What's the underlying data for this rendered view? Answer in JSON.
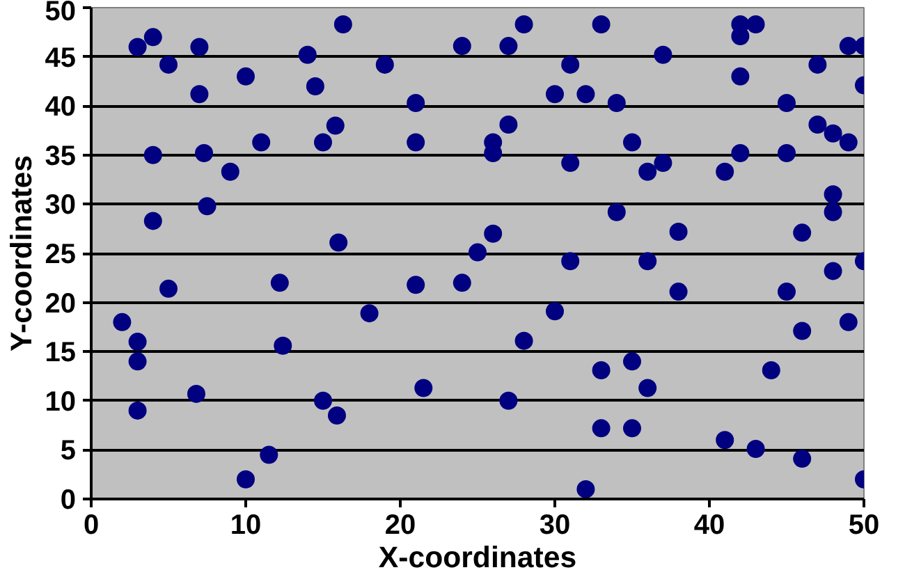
{
  "chart_data": {
    "type": "scatter",
    "xlabel": "X-coordinates",
    "ylabel": "Y-coordinates",
    "xlim": [
      0,
      50
    ],
    "ylim": [
      0,
      50
    ],
    "xticks": [
      0,
      10,
      20,
      30,
      40,
      50
    ],
    "yticks": [
      0,
      5,
      10,
      15,
      20,
      25,
      30,
      35,
      40,
      45,
      50
    ],
    "grid": "y",
    "marker": "circle",
    "series": [
      {
        "color": "#000080",
        "x": [
          2,
          3,
          3,
          3,
          3,
          4,
          4,
          4,
          5,
          5,
          7,
          7,
          7.3,
          7.5,
          6.8,
          9,
          10,
          10,
          11,
          11.5,
          12.2,
          12.4,
          14,
          14.5,
          15,
          15,
          15.8,
          16,
          15.9,
          16.3,
          18,
          19,
          21,
          21,
          21,
          21.5,
          24,
          24,
          25,
          26,
          26,
          26,
          27,
          27,
          27,
          28,
          28,
          30,
          30,
          31,
          31,
          31,
          32,
          32,
          33,
          33,
          33,
          34,
          34,
          35,
          35,
          35,
          36,
          36,
          36,
          37,
          37,
          38,
          38,
          41,
          41,
          42,
          42,
          42,
          42,
          43,
          43,
          44,
          45,
          45,
          45,
          46,
          46,
          46,
          47,
          47,
          48,
          48,
          48,
          48,
          49,
          49,
          49,
          50,
          50,
          50,
          50
        ],
        "values": [
          18,
          16,
          14,
          9,
          46,
          47,
          35,
          28.3,
          44.2,
          21.4,
          46,
          41.2,
          35.2,
          29.8,
          10.7,
          33.3,
          43,
          2,
          36.3,
          4.5,
          22,
          15.6,
          45.2,
          42,
          36.3,
          10,
          38,
          26.1,
          8.5,
          48.3,
          18.9,
          44.2,
          40.3,
          36.3,
          21.8,
          11.3,
          46.1,
          22,
          25.1,
          36.3,
          35.2,
          27,
          46.1,
          38.1,
          10,
          48.3,
          16.1,
          41.2,
          19.1,
          44.2,
          34.2,
          24.2,
          41.2,
          1,
          48.3,
          13.1,
          7.2,
          40.3,
          29.2,
          36.3,
          14,
          7.2,
          33.3,
          24.2,
          11.3,
          45.2,
          34.2,
          27.2,
          21.1,
          33.3,
          6,
          48.3,
          47.1,
          43,
          35.2,
          48.3,
          5.1,
          13.1,
          40.3,
          35.2,
          21.1,
          27.1,
          17.1,
          4.1,
          44.2,
          38.1,
          37.2,
          31,
          29.2,
          23.2,
          46.1,
          36.3,
          18,
          46.1,
          42.1,
          24.2,
          2
        ]
      }
    ]
  }
}
